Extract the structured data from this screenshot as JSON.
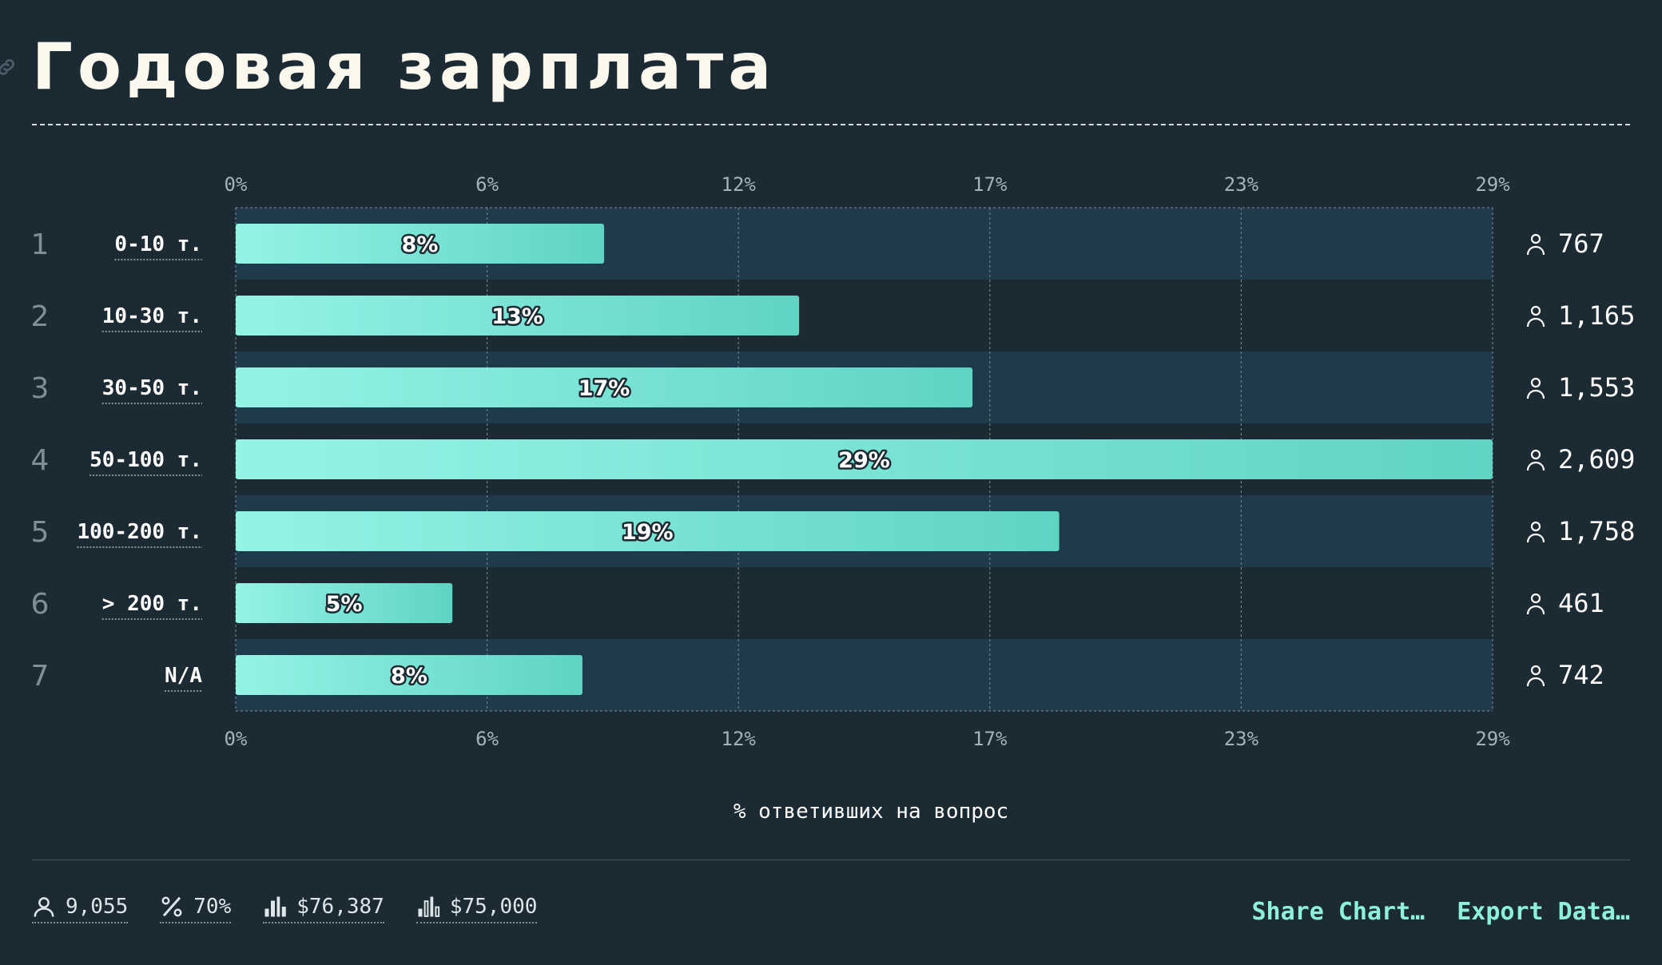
{
  "title": "Годовая зарплата",
  "colors": {
    "background": "#1b2a33",
    "band": "#1f3a4a",
    "bar_start": "#95f3e5",
    "bar_end": "#5fd4c3",
    "accent": "#8ef0dc"
  },
  "chart_data": {
    "type": "bar",
    "orientation": "horizontal",
    "xlabel": "% ответивших на вопрос",
    "xlim": [
      0,
      29
    ],
    "x_ticks": [
      "0%",
      "6%",
      "12%",
      "17%",
      "23%",
      "29%"
    ],
    "grid": true,
    "categories": [
      "0-10 т.",
      "10-30 т.",
      "30-50 т.",
      "50-100 т.",
      "100-200 т.",
      "> 200 т.",
      "N/A"
    ],
    "ranks": [
      "1",
      "2",
      "3",
      "4",
      "5",
      "6",
      "7"
    ],
    "values": [
      8.5,
      13,
      17,
      29,
      19,
      5,
      8
    ],
    "value_labels": [
      "8%",
      "13%",
      "17%",
      "29%",
      "19%",
      "5%",
      "8%"
    ],
    "counts": [
      "767",
      "1,165",
      "1,553",
      "2,609",
      "1,758",
      "461",
      "742"
    ]
  },
  "footer": {
    "respondents": "9,055",
    "percent": "70%",
    "mean": "$76,387",
    "median": "$75,000",
    "share_label": "Share Chart…",
    "export_label": "Export Data…"
  },
  "icons": {
    "title": "link-icon",
    "count": "person-icon",
    "respondents": "person-icon",
    "percent": "percent-icon",
    "mean": "bar-chart-icon",
    "median": "bar-chart-outline-icon"
  }
}
